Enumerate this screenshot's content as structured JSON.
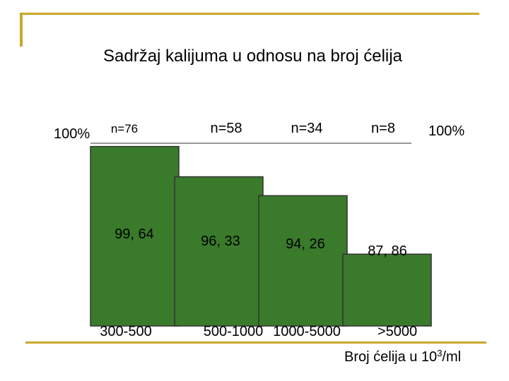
{
  "slide": {
    "title": "Sadržaj kalijuma u odnosu na broj ćelija"
  },
  "colors": {
    "accent": "#c8a82a",
    "bar_fill": "#3a7a2b",
    "bar_stroke": "#333333"
  },
  "chart_data": {
    "type": "bar",
    "title": "Sadržaj kalijuma u odnosu na broj ćelija",
    "xlabel": "Broj ćelija u 10",
    "xlabel_sup": "3",
    "xlabel_suffix": "/ml",
    "ylabel": "",
    "ylim": [
      0,
      100
    ],
    "reference_label_left": "100%",
    "reference_label_right": "100%",
    "categories": [
      "300-500",
      "500-1000",
      "1000-5000",
      ">5000"
    ],
    "values": [
      99.64,
      96.33,
      94.26,
      87.86
    ],
    "value_labels": [
      "99, 64",
      "96, 33",
      "94, 26",
      "87, 86"
    ],
    "counts": [
      "n=76",
      "n=58",
      "n=34",
      "n=8"
    ],
    "grid": false,
    "legend": "none"
  }
}
